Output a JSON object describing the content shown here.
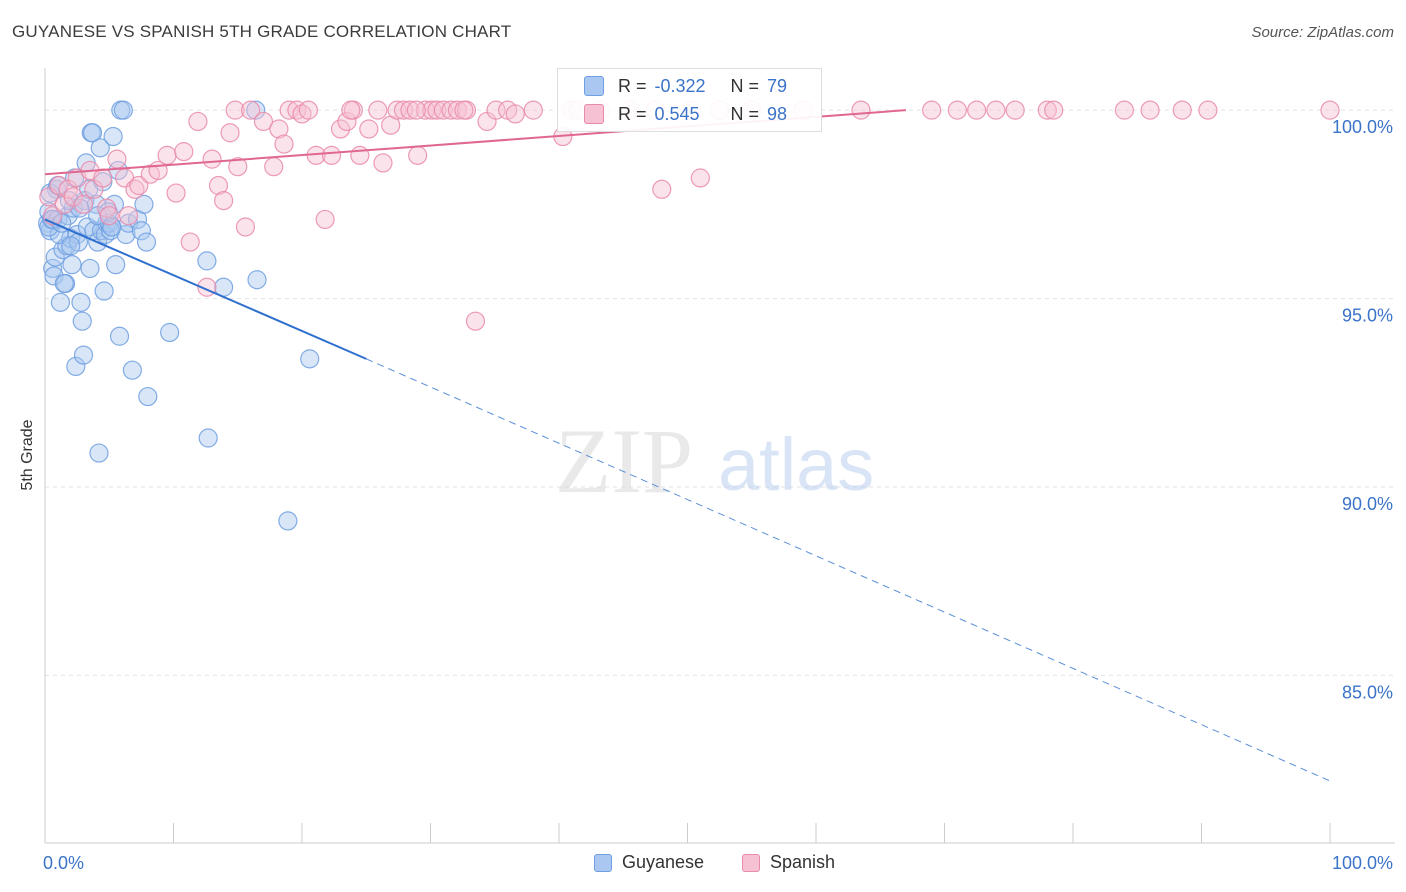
{
  "title": "GUYANESE VS SPANISH 5TH GRADE CORRELATION CHART",
  "source": "Source: ZipAtlas.com",
  "watermark": {
    "zip": "ZIP",
    "atlas": "atlas"
  },
  "legend": {
    "r_label": "R =",
    "n_label": "N =",
    "rows": [
      {
        "r": "-0.322",
        "n": "79"
      },
      {
        "r": "0.545",
        "n": "98"
      }
    ]
  },
  "chart_data": {
    "type": "scatter",
    "title": "GUYANESE VS SPANISH 5TH GRADE CORRELATION CHART",
    "xlabel": "",
    "ylabel": "5th Grade",
    "xlim": [
      0,
      100
    ],
    "ylim": [
      80.5,
      100.8
    ],
    "x_tick_labels": [
      "0.0%",
      "100.0%"
    ],
    "y_ticks": [
      100,
      95,
      90,
      85
    ],
    "y_tick_labels": [
      "100.0%",
      "95.0%",
      "90.0%",
      "85.0%"
    ],
    "grid": true,
    "legend_position": "bottom-center",
    "series": [
      {
        "name": "Guyanese",
        "color": "#6f9fe0",
        "fill": "#a9c7f0",
        "r": "-0.322",
        "n": "79",
        "trend": {
          "x0": 0,
          "y0": 97.1,
          "x1": 25,
          "y1": 93.4,
          "dash_to_x": 100,
          "dash_to_y": 82.2
        },
        "points": [
          [
            0.2,
            97.0
          ],
          [
            0.3,
            97.3
          ],
          [
            0.4,
            96.8
          ],
          [
            0.5,
            97.1
          ],
          [
            0.6,
            95.8
          ],
          [
            0.7,
            95.6
          ],
          [
            0.8,
            96.1
          ],
          [
            0.9,
            97.9
          ],
          [
            1.0,
            97.1
          ],
          [
            1.2,
            94.9
          ],
          [
            1.4,
            96.3
          ],
          [
            1.6,
            95.4
          ],
          [
            1.7,
            96.4
          ],
          [
            1.8,
            97.2
          ],
          [
            2.0,
            96.6
          ],
          [
            2.2,
            97.4
          ],
          [
            2.3,
            98.2
          ],
          [
            2.4,
            93.2
          ],
          [
            2.5,
            96.7
          ],
          [
            2.6,
            96.5
          ],
          [
            2.8,
            94.9
          ],
          [
            2.9,
            94.4
          ],
          [
            3.0,
            93.5
          ],
          [
            3.1,
            97.6
          ],
          [
            3.3,
            96.9
          ],
          [
            3.4,
            97.9
          ],
          [
            3.5,
            95.8
          ],
          [
            3.6,
            99.4
          ],
          [
            3.7,
            99.4
          ],
          [
            3.8,
            96.8
          ],
          [
            4.0,
            97.5
          ],
          [
            4.1,
            96.5
          ],
          [
            4.2,
            90.9
          ],
          [
            4.3,
            99.0
          ],
          [
            4.4,
            96.8
          ],
          [
            4.5,
            98.1
          ],
          [
            4.6,
            95.2
          ],
          [
            4.7,
            96.7
          ],
          [
            4.8,
            97.0
          ],
          [
            5.0,
            97.0
          ],
          [
            5.1,
            96.8
          ],
          [
            5.3,
            99.3
          ],
          [
            5.4,
            97.5
          ],
          [
            5.5,
            95.9
          ],
          [
            5.7,
            98.4
          ],
          [
            5.8,
            94.0
          ],
          [
            5.9,
            100.0
          ],
          [
            6.1,
            100.0
          ],
          [
            6.3,
            96.7
          ],
          [
            6.5,
            97.0
          ],
          [
            6.8,
            93.1
          ],
          [
            7.2,
            97.1
          ],
          [
            7.5,
            96.8
          ],
          [
            7.7,
            97.5
          ],
          [
            7.9,
            96.5
          ],
          [
            8.0,
            92.4
          ],
          [
            9.7,
            94.1
          ],
          [
            12.6,
            96.0
          ],
          [
            12.7,
            91.3
          ],
          [
            13.9,
            95.3
          ],
          [
            16.4,
            100.0
          ],
          [
            16.5,
            95.5
          ],
          [
            18.9,
            89.1
          ],
          [
            20.6,
            93.4
          ],
          [
            1.1,
            96.7
          ],
          [
            1.5,
            95.4
          ],
          [
            2.1,
            95.9
          ],
          [
            0.3,
            96.9
          ],
          [
            0.6,
            97.1
          ],
          [
            1.3,
            97.0
          ],
          [
            1.9,
            97.6
          ],
          [
            2.7,
            97.4
          ],
          [
            3.2,
            98.6
          ],
          [
            4.9,
            97.3
          ],
          [
            5.2,
            96.9
          ],
          [
            0.4,
            97.8
          ],
          [
            1.0,
            98.0
          ],
          [
            2.0,
            96.4
          ],
          [
            4.1,
            97.2
          ]
        ]
      },
      {
        "name": "Spanish",
        "color": "#e98aaa",
        "fill": "#f6c2d3",
        "r": "0.545",
        "n": "98",
        "trend": {
          "x0": 0,
          "y0": 98.3,
          "x1": 67,
          "y1": 100.0
        },
        "points": [
          [
            0.3,
            97.7
          ],
          [
            0.6,
            97.2
          ],
          [
            1.1,
            98.0
          ],
          [
            1.5,
            97.5
          ],
          [
            1.8,
            97.9
          ],
          [
            2.2,
            97.7
          ],
          [
            2.5,
            98.2
          ],
          [
            3.0,
            97.5
          ],
          [
            3.5,
            98.4
          ],
          [
            3.8,
            97.9
          ],
          [
            4.5,
            98.2
          ],
          [
            4.8,
            97.4
          ],
          [
            5.0,
            97.2
          ],
          [
            5.6,
            98.7
          ],
          [
            6.2,
            98.2
          ],
          [
            6.5,
            97.2
          ],
          [
            7.0,
            97.9
          ],
          [
            7.3,
            98.0
          ],
          [
            8.2,
            98.3
          ],
          [
            8.8,
            98.4
          ],
          [
            9.5,
            98.8
          ],
          [
            10.2,
            97.8
          ],
          [
            10.8,
            98.9
          ],
          [
            11.3,
            96.5
          ],
          [
            11.9,
            99.7
          ],
          [
            12.6,
            95.3
          ],
          [
            13.0,
            98.7
          ],
          [
            13.5,
            98.0
          ],
          [
            13.9,
            97.6
          ],
          [
            14.4,
            99.4
          ],
          [
            14.8,
            100.0
          ],
          [
            15.6,
            96.9
          ],
          [
            15.0,
            98.5
          ],
          [
            16.0,
            100.0
          ],
          [
            17.0,
            99.7
          ],
          [
            17.8,
            98.5
          ],
          [
            18.2,
            99.5
          ],
          [
            18.6,
            99.1
          ],
          [
            19.0,
            100.0
          ],
          [
            19.6,
            100.0
          ],
          [
            20.0,
            99.9
          ],
          [
            20.5,
            100.0
          ],
          [
            21.1,
            98.8
          ],
          [
            21.8,
            97.1
          ],
          [
            22.3,
            98.8
          ],
          [
            23.0,
            99.5
          ],
          [
            23.5,
            99.7
          ],
          [
            24.0,
            100.0
          ],
          [
            24.5,
            98.8
          ],
          [
            25.2,
            99.5
          ],
          [
            25.9,
            100.0
          ],
          [
            26.3,
            98.6
          ],
          [
            26.9,
            99.6
          ],
          [
            27.4,
            100.0
          ],
          [
            27.9,
            100.0
          ],
          [
            28.4,
            100.0
          ],
          [
            29.0,
            98.8
          ],
          [
            29.6,
            100.0
          ],
          [
            30.1,
            100.0
          ],
          [
            30.5,
            100.0
          ],
          [
            31.0,
            100.0
          ],
          [
            31.6,
            100.0
          ],
          [
            32.1,
            100.0
          ],
          [
            32.8,
            100.0
          ],
          [
            33.5,
            94.4
          ],
          [
            34.4,
            99.7
          ],
          [
            35.1,
            100.0
          ],
          [
            36.0,
            100.0
          ],
          [
            36.6,
            99.9
          ],
          [
            38.0,
            100.0
          ],
          [
            40.3,
            99.3
          ],
          [
            41.0,
            100.0
          ],
          [
            43.2,
            100.0
          ],
          [
            45.5,
            100.0
          ],
          [
            47.5,
            100.0
          ],
          [
            48.0,
            97.9
          ],
          [
            50.3,
            100.0
          ],
          [
            51.0,
            98.2
          ],
          [
            52.5,
            100.0
          ],
          [
            55.0,
            100.0
          ],
          [
            59.0,
            100.0
          ],
          [
            63.5,
            100.0
          ],
          [
            69.0,
            100.0
          ],
          [
            71.0,
            100.0
          ],
          [
            72.5,
            100.0
          ],
          [
            74.0,
            100.0
          ],
          [
            75.5,
            100.0
          ],
          [
            78.0,
            100.0
          ],
          [
            78.5,
            100.0
          ],
          [
            84.0,
            100.0
          ],
          [
            86.0,
            100.0
          ],
          [
            88.5,
            100.0
          ],
          [
            90.5,
            100.0
          ],
          [
            100.0,
            100.0
          ],
          [
            23.8,
            100.0
          ],
          [
            28.9,
            100.0
          ],
          [
            32.6,
            100.0
          ],
          [
            41.5,
            100.0
          ]
        ]
      }
    ]
  }
}
